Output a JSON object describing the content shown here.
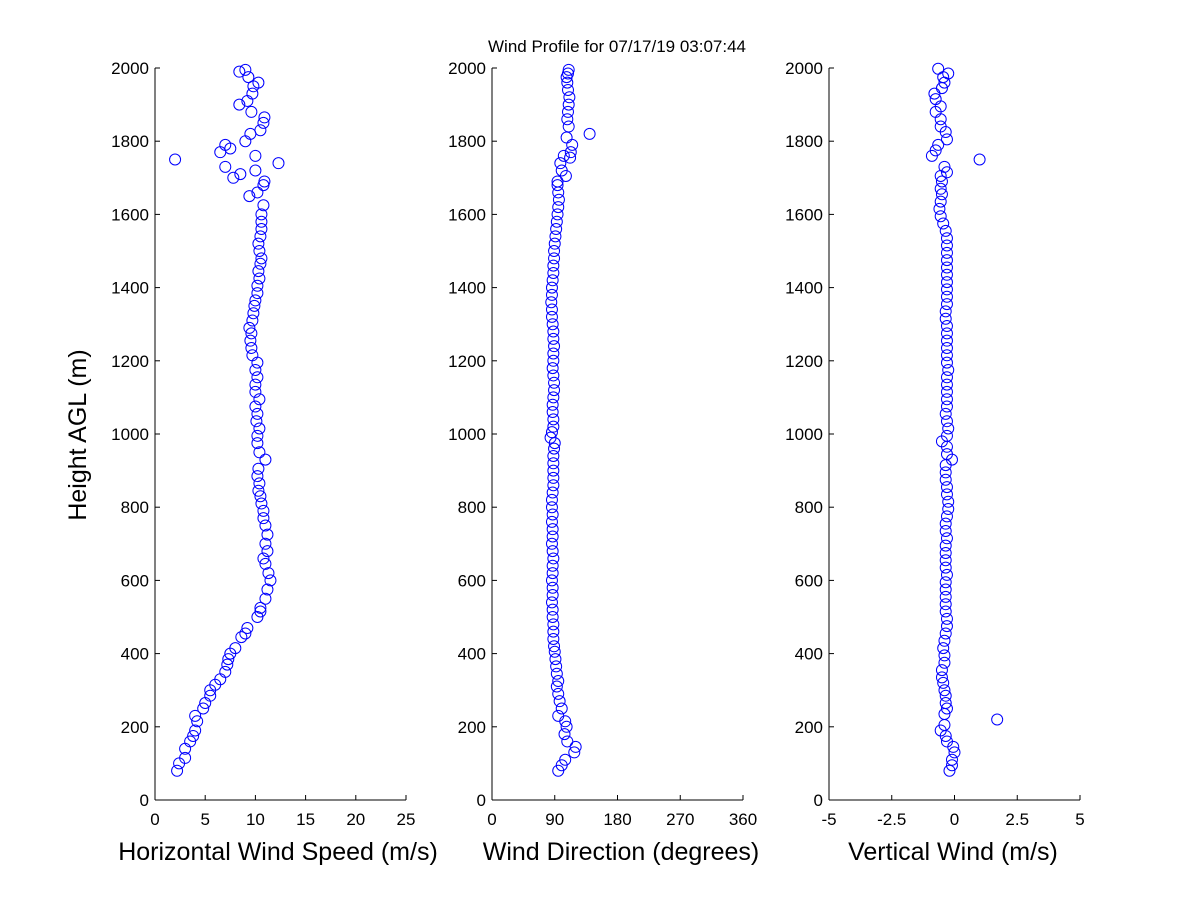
{
  "figure": {
    "title": "Wind Profile for  07/17/19 03:07:44",
    "ylabel": "Height AGL (m)"
  },
  "style": {
    "marker_color": "#0000ff",
    "axis_color": "#000000",
    "background": "#ffffff"
  },
  "chart_data": [
    {
      "type": "scatter",
      "xlabel": "Horizontal Wind Speed (m/s)",
      "ylabel": "Height AGL (m)",
      "xlim": [
        0,
        25
      ],
      "ylim": [
        0,
        2000
      ],
      "xticks": [
        "0",
        "5",
        "10",
        "15",
        "20",
        "25"
      ],
      "yticks": [
        "0",
        "200",
        "400",
        "600",
        "800",
        "1000",
        "1200",
        "1400",
        "1600",
        "1800",
        "2000"
      ],
      "grid": false,
      "marker": "open-circle",
      "points": [
        [
          2.2,
          80
        ],
        [
          2.4,
          100
        ],
        [
          3.0,
          115
        ],
        [
          3.0,
          140
        ],
        [
          3.5,
          160
        ],
        [
          3.8,
          175
        ],
        [
          4.0,
          190
        ],
        [
          4.2,
          215
        ],
        [
          4.0,
          230
        ],
        [
          4.8,
          250
        ],
        [
          5.0,
          265
        ],
        [
          5.5,
          285
        ],
        [
          5.5,
          300
        ],
        [
          6.0,
          315
        ],
        [
          6.5,
          330
        ],
        [
          7.0,
          350
        ],
        [
          7.2,
          370
        ],
        [
          7.3,
          385
        ],
        [
          7.5,
          400
        ],
        [
          8.0,
          415
        ],
        [
          8.6,
          445
        ],
        [
          9.0,
          455
        ],
        [
          9.2,
          470
        ],
        [
          10.2,
          500
        ],
        [
          10.5,
          515
        ],
        [
          10.5,
          525
        ],
        [
          11.0,
          550
        ],
        [
          11.2,
          575
        ],
        [
          11.5,
          600
        ],
        [
          11.3,
          620
        ],
        [
          11.0,
          645
        ],
        [
          10.8,
          660
        ],
        [
          11.2,
          680
        ],
        [
          11.0,
          700
        ],
        [
          11.2,
          725
        ],
        [
          11.0,
          750
        ],
        [
          10.8,
          770
        ],
        [
          10.8,
          790
        ],
        [
          10.6,
          810
        ],
        [
          10.5,
          830
        ],
        [
          10.3,
          845
        ],
        [
          10.4,
          865
        ],
        [
          10.2,
          885
        ],
        [
          10.3,
          905
        ],
        [
          11.0,
          930
        ],
        [
          10.4,
          950
        ],
        [
          10.2,
          975
        ],
        [
          10.2,
          995
        ],
        [
          10.4,
          1015
        ],
        [
          10.1,
          1035
        ],
        [
          10.2,
          1055
        ],
        [
          10.0,
          1075
        ],
        [
          10.4,
          1095
        ],
        [
          10.0,
          1115
        ],
        [
          10.0,
          1135
        ],
        [
          10.2,
          1155
        ],
        [
          10.0,
          1175
        ],
        [
          10.2,
          1195
        ],
        [
          9.7,
          1215
        ],
        [
          9.6,
          1235
        ],
        [
          9.5,
          1255
        ],
        [
          9.6,
          1275
        ],
        [
          9.4,
          1290
        ],
        [
          9.7,
          1310
        ],
        [
          9.8,
          1330
        ],
        [
          9.9,
          1350
        ],
        [
          10.0,
          1365
        ],
        [
          10.2,
          1385
        ],
        [
          10.2,
          1405
        ],
        [
          10.4,
          1425
        ],
        [
          10.3,
          1445
        ],
        [
          10.5,
          1465
        ],
        [
          10.6,
          1480
        ],
        [
          10.4,
          1500
        ],
        [
          10.3,
          1520
        ],
        [
          10.5,
          1540
        ],
        [
          10.6,
          1560
        ],
        [
          10.6,
          1580
        ],
        [
          10.6,
          1600
        ],
        [
          10.8,
          1625
        ],
        [
          10.2,
          1660
        ],
        [
          9.4,
          1650
        ],
        [
          10.8,
          1680
        ],
        [
          10.9,
          1690
        ],
        [
          8.5,
          1710
        ],
        [
          7.8,
          1700
        ],
        [
          10.0,
          1720
        ],
        [
          7.0,
          1730
        ],
        [
          10.0,
          1760
        ],
        [
          6.5,
          1770
        ],
        [
          7.5,
          1780
        ],
        [
          7.0,
          1790
        ],
        [
          2.0,
          1750
        ],
        [
          12.3,
          1740
        ],
        [
          9.0,
          1800
        ],
        [
          9.5,
          1820
        ],
        [
          10.5,
          1830
        ],
        [
          10.8,
          1850
        ],
        [
          10.9,
          1865
        ],
        [
          9.6,
          1880
        ],
        [
          8.4,
          1900
        ],
        [
          9.2,
          1910
        ],
        [
          9.7,
          1930
        ],
        [
          9.8,
          1950
        ],
        [
          10.3,
          1960
        ],
        [
          9.3,
          1975
        ],
        [
          8.4,
          1990
        ],
        [
          9.0,
          1995
        ]
      ]
    },
    {
      "type": "scatter",
      "xlabel": "Wind Direction (degrees)",
      "ylabel": "Height AGL (m)",
      "xlim": [
        0,
        360
      ],
      "ylim": [
        0,
        2000
      ],
      "xticks": [
        "0",
        "90",
        "180",
        "270",
        "360"
      ],
      "yticks": [
        "0",
        "200",
        "400",
        "600",
        "800",
        "1000",
        "1200",
        "1400",
        "1600",
        "1800",
        "2000"
      ],
      "grid": false,
      "marker": "open-circle",
      "points": [
        [
          95,
          80
        ],
        [
          100,
          95
        ],
        [
          105,
          110
        ],
        [
          118,
          130
        ],
        [
          120,
          145
        ],
        [
          108,
          160
        ],
        [
          104,
          180
        ],
        [
          107,
          200
        ],
        [
          105,
          215
        ],
        [
          95,
          230
        ],
        [
          100,
          250
        ],
        [
          97,
          270
        ],
        [
          95,
          290
        ],
        [
          93,
          310
        ],
        [
          95,
          325
        ],
        [
          93,
          345
        ],
        [
          92,
          365
        ],
        [
          91,
          385
        ],
        [
          90,
          405
        ],
        [
          89,
          420
        ],
        [
          88,
          440
        ],
        [
          88,
          460
        ],
        [
          88,
          480
        ],
        [
          87,
          500
        ],
        [
          87,
          520
        ],
        [
          86,
          540
        ],
        [
          87,
          560
        ],
        [
          87,
          580
        ],
        [
          86,
          600
        ],
        [
          87,
          620
        ],
        [
          87,
          640
        ],
        [
          88,
          660
        ],
        [
          87,
          680
        ],
        [
          86,
          700
        ],
        [
          87,
          720
        ],
        [
          87,
          740
        ],
        [
          86,
          760
        ],
        [
          87,
          780
        ],
        [
          86,
          800
        ],
        [
          86,
          820
        ],
        [
          87,
          840
        ],
        [
          88,
          860
        ],
        [
          88,
          880
        ],
        [
          88,
          900
        ],
        [
          88,
          920
        ],
        [
          88,
          940
        ],
        [
          89,
          960
        ],
        [
          90,
          975
        ],
        [
          84,
          990
        ],
        [
          86,
          1005
        ],
        [
          88,
          1020
        ],
        [
          88,
          1040
        ],
        [
          87,
          1060
        ],
        [
          87,
          1080
        ],
        [
          88,
          1100
        ],
        [
          89,
          1120
        ],
        [
          89,
          1140
        ],
        [
          88,
          1160
        ],
        [
          87,
          1180
        ],
        [
          88,
          1200
        ],
        [
          88,
          1220
        ],
        [
          89,
          1240
        ],
        [
          88,
          1260
        ],
        [
          88,
          1280
        ],
        [
          87,
          1300
        ],
        [
          86,
          1320
        ],
        [
          86,
          1340
        ],
        [
          85,
          1360
        ],
        [
          86,
          1380
        ],
        [
          86,
          1400
        ],
        [
          87,
          1420
        ],
        [
          88,
          1440
        ],
        [
          88,
          1460
        ],
        [
          89,
          1480
        ],
        [
          89,
          1500
        ],
        [
          90,
          1520
        ],
        [
          91,
          1540
        ],
        [
          92,
          1560
        ],
        [
          93,
          1580
        ],
        [
          94,
          1600
        ],
        [
          95,
          1620
        ],
        [
          96,
          1640
        ],
        [
          95,
          1660
        ],
        [
          94,
          1680
        ],
        [
          94,
          1690
        ],
        [
          100,
          1720
        ],
        [
          106,
          1705
        ],
        [
          98,
          1740
        ],
        [
          103,
          1760
        ],
        [
          112,
          1755
        ],
        [
          113,
          1770
        ],
        [
          115,
          1790
        ],
        [
          107,
          1810
        ],
        [
          140,
          1820
        ],
        [
          110,
          1840
        ],
        [
          108,
          1860
        ],
        [
          109,
          1880
        ],
        [
          110,
          1900
        ],
        [
          111,
          1920
        ],
        [
          109,
          1940
        ],
        [
          108,
          1960
        ],
        [
          107,
          1975
        ],
        [
          109,
          1985
        ],
        [
          110,
          1995
        ]
      ]
    },
    {
      "type": "scatter",
      "xlabel": "Vertical Wind (m/s)",
      "ylabel": "Height AGL (m)",
      "xlim": [
        -5,
        5
      ],
      "ylim": [
        0,
        2000
      ],
      "xticks": [
        "-5",
        "-2.5",
        "0",
        "2.5",
        "5"
      ],
      "yticks": [
        "0",
        "200",
        "400",
        "600",
        "800",
        "1000",
        "1200",
        "1400",
        "1600",
        "1800",
        "2000"
      ],
      "grid": false,
      "marker": "open-circle",
      "points": [
        [
          -0.2,
          80
        ],
        [
          -0.1,
          95
        ],
        [
          -0.1,
          110
        ],
        [
          0,
          130
        ],
        [
          -0.05,
          145
        ],
        [
          -0.3,
          160
        ],
        [
          -0.35,
          175
        ],
        [
          -0.55,
          190
        ],
        [
          -0.4,
          205
        ],
        [
          1.7,
          220
        ],
        [
          -0.4,
          235
        ],
        [
          -0.3,
          250
        ],
        [
          -0.35,
          265
        ],
        [
          -0.35,
          285
        ],
        [
          -0.4,
          300
        ],
        [
          -0.45,
          320
        ],
        [
          -0.5,
          335
        ],
        [
          -0.5,
          355
        ],
        [
          -0.4,
          375
        ],
        [
          -0.4,
          395
        ],
        [
          -0.45,
          415
        ],
        [
          -0.4,
          435
        ],
        [
          -0.35,
          455
        ],
        [
          -0.3,
          475
        ],
        [
          -0.3,
          495
        ],
        [
          -0.35,
          515
        ],
        [
          -0.35,
          535
        ],
        [
          -0.35,
          555
        ],
        [
          -0.35,
          575
        ],
        [
          -0.35,
          595
        ],
        [
          -0.3,
          615
        ],
        [
          -0.35,
          635
        ],
        [
          -0.35,
          655
        ],
        [
          -0.35,
          675
        ],
        [
          -0.35,
          695
        ],
        [
          -0.3,
          715
        ],
        [
          -0.35,
          735
        ],
        [
          -0.35,
          755
        ],
        [
          -0.3,
          775
        ],
        [
          -0.25,
          795
        ],
        [
          -0.25,
          815
        ],
        [
          -0.3,
          835
        ],
        [
          -0.3,
          855
        ],
        [
          -0.35,
          875
        ],
        [
          -0.35,
          895
        ],
        [
          -0.35,
          915
        ],
        [
          -0.1,
          930
        ],
        [
          -0.3,
          945
        ],
        [
          -0.3,
          965
        ],
        [
          -0.5,
          980
        ],
        [
          -0.3,
          995
        ],
        [
          -0.25,
          1015
        ],
        [
          -0.3,
          1035
        ],
        [
          -0.35,
          1055
        ],
        [
          -0.3,
          1075
        ],
        [
          -0.3,
          1095
        ],
        [
          -0.3,
          1115
        ],
        [
          -0.3,
          1135
        ],
        [
          -0.3,
          1155
        ],
        [
          -0.25,
          1175
        ],
        [
          -0.3,
          1195
        ],
        [
          -0.3,
          1215
        ],
        [
          -0.3,
          1235
        ],
        [
          -0.3,
          1255
        ],
        [
          -0.3,
          1275
        ],
        [
          -0.3,
          1295
        ],
        [
          -0.35,
          1315
        ],
        [
          -0.35,
          1335
        ],
        [
          -0.3,
          1355
        ],
        [
          -0.3,
          1375
        ],
        [
          -0.3,
          1395
        ],
        [
          -0.3,
          1415
        ],
        [
          -0.3,
          1435
        ],
        [
          -0.3,
          1455
        ],
        [
          -0.3,
          1475
        ],
        [
          -0.3,
          1495
        ],
        [
          -0.3,
          1515
        ],
        [
          -0.3,
          1535
        ],
        [
          -0.35,
          1555
        ],
        [
          -0.45,
          1575
        ],
        [
          -0.55,
          1595
        ],
        [
          -0.6,
          1615
        ],
        [
          -0.55,
          1635
        ],
        [
          -0.5,
          1655
        ],
        [
          -0.55,
          1670
        ],
        [
          -0.5,
          1690
        ],
        [
          -0.55,
          1705
        ],
        [
          -0.3,
          1715
        ],
        [
          -0.4,
          1730
        ],
        [
          -0.9,
          1760
        ],
        [
          -0.75,
          1775
        ],
        [
          -0.65,
          1790
        ],
        [
          1.0,
          1750
        ],
        [
          -0.3,
          1805
        ],
        [
          -0.35,
          1825
        ],
        [
          -0.55,
          1840
        ],
        [
          -0.55,
          1860
        ],
        [
          -0.75,
          1880
        ],
        [
          -0.55,
          1895
        ],
        [
          -0.75,
          1915
        ],
        [
          -0.8,
          1930
        ],
        [
          -0.5,
          1945
        ],
        [
          -0.4,
          1960
        ],
        [
          -0.45,
          1975
        ],
        [
          -0.25,
          1985
        ],
        [
          -0.65,
          1998
        ]
      ]
    }
  ]
}
